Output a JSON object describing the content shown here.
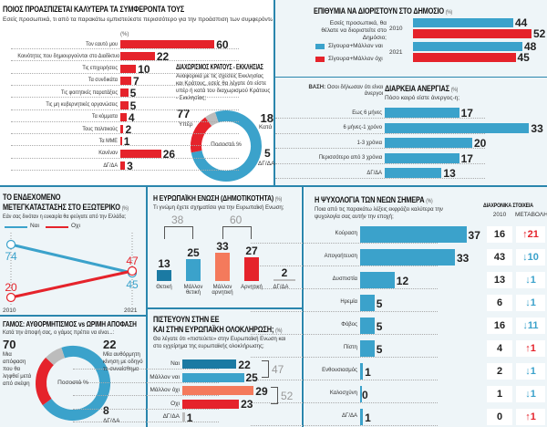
{
  "colors": {
    "blue": "#3ba2cb",
    "dark_blue": "#1b7aa3",
    "red": "#e5232b",
    "salmon": "#f47a5c",
    "grey": "#bcbcbc",
    "rule": "#2a86ad"
  },
  "chart_data": [
    {
      "id": "interests",
      "type": "bar",
      "orientation": "horizontal",
      "title": "ΠΟΙΟΣ ΠΡΟΑΣΠΙΖΕΤΑΙ ΚΑΛΥΤΕΡΑ ΤΑ ΣΥΜΦΕΡΟΝΤΑ ΤΟΥΣ",
      "subtitle": "Εσείς προσωπικά, τι από τα παρακάτω εμπιστεύεστε περισσότερο για την προάσπιση των συμφερόντων της γενιάς σας;",
      "unit": "(%)",
      "categories": [
        "Τον εαυτό μου",
        "Κοινότητες που δημιουργούνται στο Διαδίκτυο",
        "Τις επιχειρήσεις",
        "Τα συνδικάτα",
        "Τις φοιτητικές παρατάξεις",
        "Τις μη κυβερνητικές οργανώσεις",
        "Τα κόμματα",
        "Τους πολιτικούς",
        "Τα ΜΜΕ",
        "Κανέναν",
        "ΔΓ/ΔΑ"
      ],
      "values": [
        60,
        22,
        10,
        7,
        5,
        5,
        4,
        2,
        1,
        26,
        3
      ]
    },
    {
      "id": "church_state",
      "type": "pie",
      "variant": "donut",
      "title": "ΔΙΑΧΩΡΙΣΜΟΣ ΚΡΑΤΟΥΣ - ΕΚΚΛΗΣΙΑΣ",
      "subtitle": "Αναφορικά με τις σχέσεις Εκκλησίας και Κράτους, εσείς θα λέγατε ότι είστε υπέρ ή κατά του διαχωρισμού Κράτους - Εκκλησίας;",
      "center_label": "Ποσοστό %",
      "slices": [
        {
          "label": "Υπέρ",
          "value": 77,
          "color": "#3ba2cb"
        },
        {
          "label": "Κατά",
          "value": 18,
          "color": "#e5232b"
        },
        {
          "label": "ΔΓ/ΔΑ",
          "value": 5,
          "color": "#bcbcbc"
        }
      ]
    },
    {
      "id": "public_sector",
      "type": "bar",
      "orientation": "horizontal",
      "title": "ΕΠΙΘΥΜΙΑ ΝΑ ΔΙΟΡΙΣΤΟΥΝ ΣΤΟ ΔΗΜΟΣΙΟ",
      "unit": "(%)",
      "subtitle": "Εσείς προσωπικά, θα θέλατε να διοριστείτε στο Δημόσιο;",
      "categories": [
        "2010",
        "2021"
      ],
      "series": [
        {
          "name": "Σίγουρα+Μάλλον ναι",
          "values": [
            44,
            48
          ],
          "color": "#3ba2cb"
        },
        {
          "name": "Σίγουρα+Μάλλον όχι",
          "values": [
            52,
            45
          ],
          "color": "#e5232b"
        }
      ]
    },
    {
      "id": "unemployment",
      "type": "bar",
      "orientation": "horizontal",
      "title": "ΔΙΑΡΚΕΙΑ ΑΝΕΡΓΙΑΣ",
      "unit": "(%)",
      "base_label": "ΒΑΣΗ:",
      "base_text": "Οσοι δήλωσαν ότι είναι άνεργοι",
      "subtitle": "Πόσο καιρό είστε άνεργος-η;",
      "categories": [
        "Εως 6 μήνες",
        "6 μήνες-1 χρόνο",
        "1-3 χρόνια",
        "Περισσότερο από 3 χρόνια",
        "ΔΓ/ΔΑ"
      ],
      "values": [
        17,
        33,
        20,
        17,
        13
      ]
    },
    {
      "id": "migration",
      "type": "line",
      "title_line1": "ΤΟ ΕΝΔΕΧΟΜΕΝΟ",
      "title_line2": "ΜΕΤΕΓΚΑΤΑΣΤΑΣΗΣ ΣΤΟ ΕΞΩΤΕΡΙΚΟ",
      "unit": "(%)",
      "subtitle": "Εάν σας δινόταν η ευκαιρία θα φεύγατε από την Ελλάδα;",
      "x": [
        "2010",
        "2021"
      ],
      "series": [
        {
          "name": "Ναι",
          "values": [
            74,
            45
          ],
          "color": "#3ba2cb"
        },
        {
          "name": "Οχι",
          "values": [
            20,
            47
          ],
          "color": "#e5232b"
        }
      ]
    },
    {
      "id": "eu_popularity",
      "type": "bar",
      "title": "Η ΕΥΡΩΠΑΪΚΗ ΕΝΩΣΗ (ΔΗΜΟΤΙΚΟΤΗΤΑ)",
      "unit": "(%)",
      "subtitle": "Τι γνώμη έχετε σχηματίσει για την Ευρωπαϊκή Ενωση;",
      "categories": [
        "Θετική",
        "Μάλλον θετική",
        "Μάλλον αρνητική",
        "Αρνητική",
        "ΔΓ/ΔΑ"
      ],
      "values": [
        13,
        25,
        33,
        27,
        2
      ],
      "colors": [
        "#1b7aa3",
        "#3ba2cb",
        "#f47a5c",
        "#e5232b",
        "#bcbcbc"
      ],
      "group_totals": [
        {
          "label": "38",
          "members": [
            0,
            1
          ]
        },
        {
          "label": "60",
          "members": [
            2,
            3
          ]
        }
      ]
    },
    {
      "id": "psychology",
      "type": "bar",
      "orientation": "horizontal",
      "title": "Η ΨΥΧΟΛΟΓΙΑ ΤΩΝ ΝΕΩΝ ΣΗΜΕΡΑ",
      "unit": "(%)",
      "subtitle": "Ποια από τις παρακάτω λέξεις εκφράζει καλύτερα την ψυχολογία σας αυτήν την εποχή;",
      "table_header": "ΔΙΑΧΡΟΝΙΚΑ ΣΤΟΙΧΕΙΑ",
      "col_2010": "2010",
      "col_change": "ΜΕΤΑΒΟΛΗ",
      "categories": [
        "Κούραση",
        "Απογοήτευση",
        "Δυσπιστία",
        "Ηρεμία",
        "Φόβος",
        "Πίστη",
        "Ενθουσιασμός",
        "Καλοσχύνη",
        "ΔΓ/ΔΑ"
      ],
      "values": [
        37,
        33,
        12,
        5,
        5,
        5,
        1,
        0,
        1
      ],
      "values_2010": [
        16,
        43,
        13,
        6,
        16,
        4,
        2,
        1,
        0
      ],
      "change": [
        {
          "dir": "up",
          "v": "21"
        },
        {
          "dir": "down",
          "v": "10"
        },
        {
          "dir": "down",
          "v": "1"
        },
        {
          "dir": "down",
          "v": "1"
        },
        {
          "dir": "down",
          "v": "11"
        },
        {
          "dir": "up",
          "v": "1"
        },
        {
          "dir": "down",
          "v": "1"
        },
        {
          "dir": "down",
          "v": "1"
        },
        {
          "dir": "up",
          "v": "1"
        }
      ]
    },
    {
      "id": "marriage",
      "type": "pie",
      "variant": "donut",
      "title": "ΓΑΜΟΣ: ΑΥΘΟΡΜΗΤΙΣΜΟΣ vs ΩΡΙΜΗ ΑΠΟΦΑΣΗ",
      "subtitle": "Κατά την άποψή σας, ο γάμος πρέπει να είναι...:",
      "center_label": "Ποσοστό %",
      "slices": [
        {
          "label": "Μια απόφαση που θα ληφθεί μετά από σκέψη",
          "value": 70,
          "color": "#3ba2cb"
        },
        {
          "label": "Μία αυθόρμητη κίνηση με οδηγό το συναίσθημα",
          "value": 22,
          "color": "#e5232b"
        },
        {
          "label": "ΔΓ/ΔΑ",
          "value": 8,
          "color": "#bcbcbc"
        }
      ]
    },
    {
      "id": "eu_belief",
      "type": "bar",
      "orientation": "horizontal",
      "title_line1": "ΠΙΣΤΕΥΟΥΝ ΣΤΗΝ ΕΕ",
      "title_line2": "ΚΑΙ ΣΤΗΝ ΕΥΡΩΠΑΪΚΗ ΟΛΟΚΛΗΡΩΣΗ;",
      "unit": "(%)",
      "subtitle": "Θα λέγατε ότι «πιστεύετε» στην Ευρωπαϊκή Ενωση και στο εγχείρημα της ευρωπαϊκής ολοκλήρωσης;",
      "categories": [
        "Ναι",
        "Μάλλον ναι",
        "Μάλλον όχι",
        "Οχι",
        "ΔΓ/ΔΑ"
      ],
      "values": [
        22,
        25,
        29,
        23,
        1
      ],
      "colors": [
        "#1b7aa3",
        "#3ba2cb",
        "#f47a5c",
        "#e5232b",
        "#bcbcbc"
      ],
      "group_totals": [
        {
          "label": "47",
          "members": [
            0,
            1
          ]
        },
        {
          "label": "52",
          "members": [
            2,
            3
          ]
        }
      ]
    }
  ]
}
